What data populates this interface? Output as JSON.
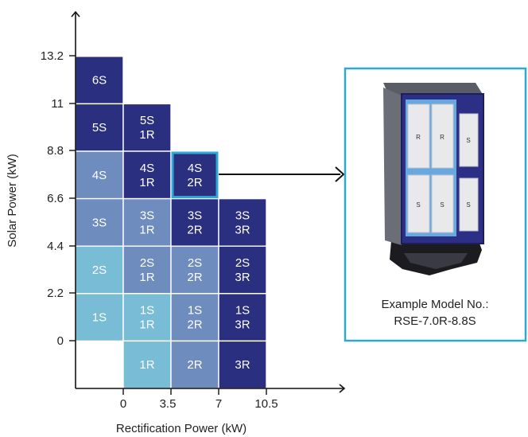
{
  "axes": {
    "x_title": "Rectification Power (kW)",
    "y_title": "Solar Power (kW)",
    "x_ticks": [
      "0",
      "3.5",
      "7",
      "10.5"
    ],
    "y_ticks": [
      "0",
      "2.2",
      "4.4",
      "6.6",
      "8.8",
      "11",
      "13.2"
    ]
  },
  "colors": {
    "dark": "#2b2f7f",
    "medium": "#6f8cbf",
    "light": "#78bcd6",
    "highlight_border": "#2ea9d6",
    "box_border": "#2ea9d6",
    "axis": "#111111"
  },
  "grid": {
    "columns": 4,
    "rows": 7,
    "cells": [
      {
        "col": 0,
        "row": 6,
        "lines": [
          "6S"
        ],
        "color": "dark"
      },
      {
        "col": 0,
        "row": 5,
        "lines": [
          "5S"
        ],
        "color": "dark"
      },
      {
        "col": 0,
        "row": 4,
        "lines": [
          "4S"
        ],
        "color": "medium"
      },
      {
        "col": 0,
        "row": 3,
        "lines": [
          "3S"
        ],
        "color": "medium"
      },
      {
        "col": 0,
        "row": 2,
        "lines": [
          "2S"
        ],
        "color": "light"
      },
      {
        "col": 0,
        "row": 1,
        "lines": [
          "1S"
        ],
        "color": "light"
      },
      {
        "col": 1,
        "row": 5,
        "lines": [
          "5S",
          "1R"
        ],
        "color": "dark"
      },
      {
        "col": 1,
        "row": 4,
        "lines": [
          "4S",
          "1R"
        ],
        "color": "dark"
      },
      {
        "col": 1,
        "row": 3,
        "lines": [
          "3S",
          "1R"
        ],
        "color": "medium"
      },
      {
        "col": 1,
        "row": 2,
        "lines": [
          "2S",
          "1R"
        ],
        "color": "medium"
      },
      {
        "col": 1,
        "row": 1,
        "lines": [
          "1S",
          "1R"
        ],
        "color": "light"
      },
      {
        "col": 1,
        "row": 0,
        "lines": [
          "1R"
        ],
        "color": "light"
      },
      {
        "col": 2,
        "row": 4,
        "lines": [
          "4S",
          "2R"
        ],
        "color": "dark",
        "highlight": true
      },
      {
        "col": 2,
        "row": 3,
        "lines": [
          "3S",
          "2R"
        ],
        "color": "dark"
      },
      {
        "col": 2,
        "row": 2,
        "lines": [
          "2S",
          "2R"
        ],
        "color": "medium"
      },
      {
        "col": 2,
        "row": 1,
        "lines": [
          "1S",
          "2R"
        ],
        "color": "medium"
      },
      {
        "col": 2,
        "row": 0,
        "lines": [
          "2R"
        ],
        "color": "medium"
      },
      {
        "col": 3,
        "row": 3,
        "lines": [
          "3S",
          "3R"
        ],
        "color": "dark"
      },
      {
        "col": 3,
        "row": 2,
        "lines": [
          "2S",
          "3R"
        ],
        "color": "dark"
      },
      {
        "col": 3,
        "row": 1,
        "lines": [
          "1S",
          "3R"
        ],
        "color": "dark"
      },
      {
        "col": 3,
        "row": 0,
        "lines": [
          "3R"
        ],
        "color": "dark"
      }
    ]
  },
  "example": {
    "caption_line1": "Example Model No.:",
    "caption_line2": "RSE-7.0R-8.8S",
    "module_labels_top": [
      "R",
      "R",
      "S"
    ],
    "module_labels_bottom": [
      "S",
      "S",
      "S"
    ]
  }
}
